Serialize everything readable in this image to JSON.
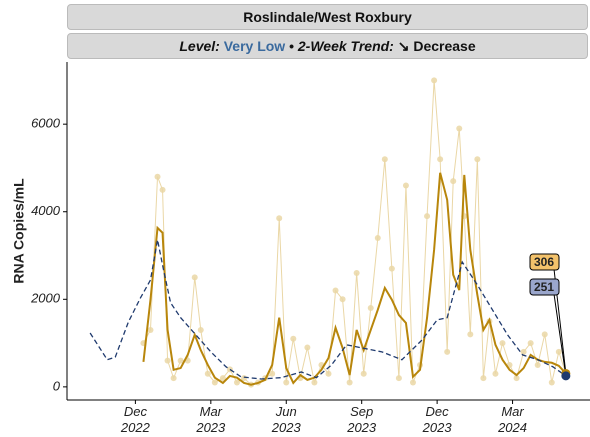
{
  "chart_data": {
    "type": "line",
    "title": "Roslindale/West Roxbury",
    "level_label": "Level:",
    "level": "Very Low",
    "separator": "•",
    "trend_label": "2-Week Trend:",
    "trend": "↘ Decrease",
    "y_label": "RNA Copies/mL",
    "xlim": [
      9.28,
      30.08
    ],
    "ylim": [
      -300,
      7420
    ],
    "xticks": [
      {
        "value": 12,
        "label": "Dec 2022"
      },
      {
        "value": 15,
        "label": "Mar 2023"
      },
      {
        "value": 18,
        "label": "Jun 2023"
      },
      {
        "value": 21,
        "label": "Sep 2023"
      },
      {
        "value": 24,
        "label": "Dec 2023"
      },
      {
        "value": 27,
        "label": "Mar 2024"
      }
    ],
    "yticks": [
      0,
      2000,
      4000,
      6000
    ],
    "grid": false,
    "series": [
      {
        "style": "points",
        "color": "#ead7a6",
        "x": [
          12.32,
          12.6,
          12.88,
          13.08,
          13.28,
          13.52,
          13.8,
          14.08,
          14.36,
          14.6,
          14.88,
          15.16,
          15.48,
          15.76,
          16.04,
          16.32,
          16.6,
          16.88,
          17.16,
          17.44,
          17.72,
          18,
          18.28,
          18.56,
          18.84,
          19.12,
          19.4,
          19.68,
          19.96,
          20.24,
          20.52,
          20.8,
          21.08,
          21.36,
          21.64,
          21.92,
          22.2,
          22.48,
          22.76,
          23.04,
          23.32,
          23.6,
          23.88,
          24.12,
          24.4,
          24.64,
          24.88,
          25.08,
          25.32,
          25.6,
          25.84,
          26.08,
          26.32,
          26.6,
          26.88,
          27.16,
          27.44,
          27.72,
          28,
          28.28,
          28.56,
          28.84,
          29.12
        ],
        "values": [
          1000,
          1300,
          4800,
          4500,
          600,
          200,
          600,
          600,
          2500,
          1300,
          300,
          100,
          200,
          400,
          100,
          200,
          50,
          100,
          200,
          300,
          3850,
          100,
          1100,
          200,
          900,
          100,
          500,
          300,
          2200,
          2000,
          100,
          2600,
          300,
          1800,
          3400,
          5200,
          2700,
          200,
          4600,
          100,
          500,
          3900,
          7000,
          5200,
          800,
          4700,
          5900,
          3900,
          1200,
          5200,
          200,
          1500,
          300,
          1000,
          500,
          200,
          800,
          1000,
          500,
          1200,
          100,
          800,
          300
        ]
      },
      {
        "style": "solid",
        "color": "#b8860b",
        "label_fill": "#f3c26b",
        "x": [
          12.32,
          12.6,
          12.88,
          13.08,
          13.28,
          13.52,
          13.8,
          14.08,
          14.36,
          14.6,
          14.88,
          15.16,
          15.48,
          15.76,
          16.04,
          16.32,
          16.6,
          16.88,
          17.16,
          17.44,
          17.72,
          18,
          18.28,
          18.56,
          18.84,
          19.12,
          19.4,
          19.68,
          19.96,
          20.24,
          20.52,
          20.8,
          21.08,
          21.36,
          21.64,
          21.92,
          22.2,
          22.48,
          22.76,
          23.04,
          23.32,
          23.6,
          23.88,
          24.12,
          24.4,
          24.64,
          24.88,
          25.08,
          25.32,
          25.6,
          25.84,
          26.08,
          26.32,
          26.6,
          26.88,
          27.16,
          27.44,
          27.72,
          28,
          28.28,
          28.56,
          28.84,
          29.12
        ],
        "values": [
          570,
          1990,
          3630,
          3520,
          1300,
          390,
          430,
          730,
          1190,
          840,
          500,
          210,
          90,
          250,
          210,
          90,
          50,
          90,
          160,
          500,
          1580,
          430,
          90,
          270,
          160,
          210,
          390,
          660,
          1350,
          890,
          270,
          1300,
          840,
          1300,
          1760,
          2260,
          1990,
          1640,
          1460,
          230,
          390,
          1580,
          3130,
          4890,
          4270,
          2560,
          2210,
          4840,
          3130,
          2100,
          1300,
          1530,
          960,
          620,
          390,
          270,
          430,
          730,
          620,
          570,
          550,
          480,
          306
        ]
      },
      {
        "style": "dashed",
        "color": "#1f3a6e",
        "label_fill": "#9aa6cc",
        "x": [
          10.2,
          10.88,
          11.2,
          11.72,
          12.2,
          12.6,
          12.88,
          13.12,
          13.4,
          13.8,
          14.4,
          15,
          15.6,
          16.2,
          17,
          17.8,
          18.6,
          19.2,
          19.8,
          20.4,
          21,
          21.8,
          22.6,
          23.4,
          24,
          24.4,
          25,
          25.6,
          26.2,
          26.8,
          27.4,
          28,
          28.6,
          29.12
        ],
        "values": [
          1230,
          620,
          680,
          1480,
          2030,
          2440,
          3360,
          2670,
          1920,
          1580,
          1190,
          800,
          460,
          230,
          180,
          210,
          340,
          210,
          500,
          960,
          890,
          800,
          620,
          1070,
          1530,
          1580,
          2850,
          2330,
          1760,
          1190,
          730,
          620,
          460,
          251
        ]
      }
    ]
  }
}
